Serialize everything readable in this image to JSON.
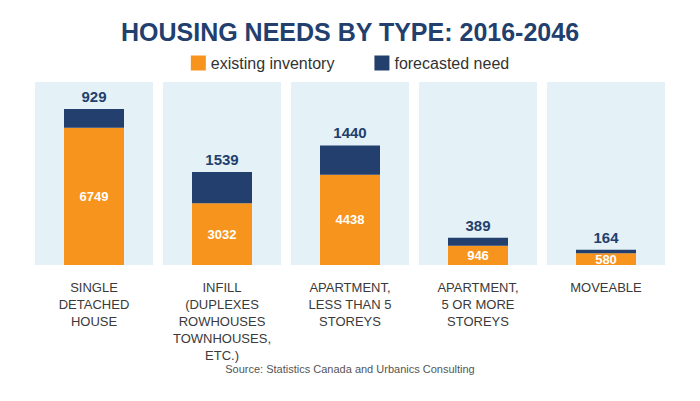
{
  "chart_data": {
    "type": "bar",
    "title": "HOUSING NEEDS BY TYPE: 2016-2046",
    "source": "Source: Statistics Canada and Urbanics Consulting",
    "categories": [
      "SINGLE\nDETACHED\nHOUSE",
      "INFILL\n(DUPLEXES\nROWHOUSES\nTOWNHOUSES,\nETC.)",
      "APARTMENT,\nLESS THAN 5\nSTOREYS",
      "APARTMENT,\n5 OR MORE\nSTOREYS",
      "MOVEABLE"
    ],
    "series": [
      {
        "name": "existing inventory",
        "color": "#f7941d",
        "values": [
          6749,
          3032,
          4438,
          946,
          580
        ]
      },
      {
        "name": "forecasted need",
        "color": "#223f6e",
        "values": [
          929,
          1539,
          1440,
          389,
          164
        ]
      }
    ],
    "stacked": true,
    "data_labels": true,
    "tick_labels": "x",
    "grid": false,
    "legend": "top",
    "ylim": [
      0,
      9000
    ]
  }
}
